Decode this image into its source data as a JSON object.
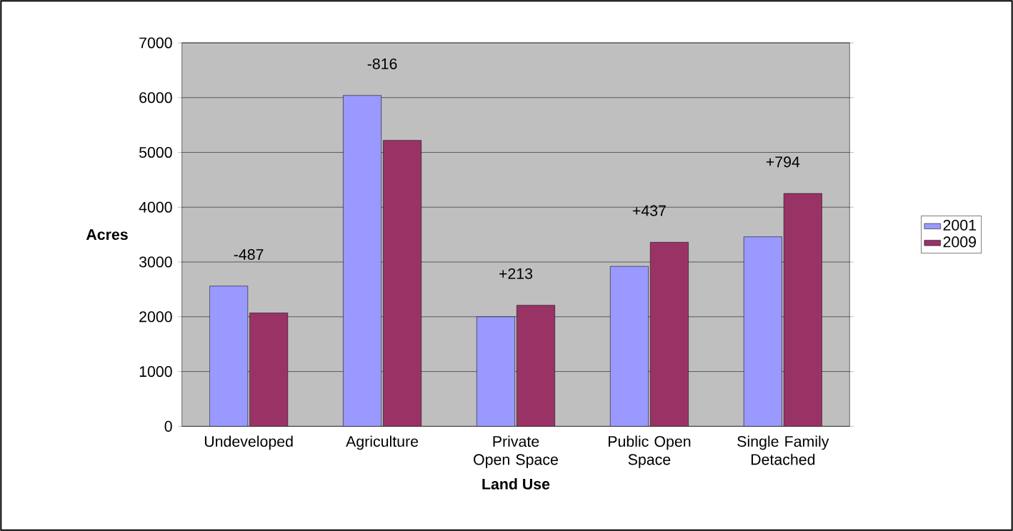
{
  "chart_data": {
    "type": "bar",
    "xlabel": "Land Use",
    "ylabel": "Acres",
    "categories": [
      "Undeveloped",
      "Agriculture",
      "Private Open Space",
      "Public Open Space",
      "Single Family Detached"
    ],
    "series": [
      {
        "name": "2001",
        "color": "#9999ff",
        "values": [
          2560,
          6040,
          2000,
          2920,
          3460
        ]
      },
      {
        "name": "2009",
        "color": "#993366",
        "values": [
          2070,
          5220,
          2210,
          3360,
          4250
        ]
      }
    ],
    "ylim": [
      0,
      7000
    ],
    "yticks": [
      0,
      1000,
      2000,
      3000,
      4000,
      5000,
      6000,
      7000
    ],
    "grid": "y",
    "legend": "right",
    "annotations": [
      "-487",
      "-816",
      "+213",
      "+437",
      "+794"
    ]
  }
}
